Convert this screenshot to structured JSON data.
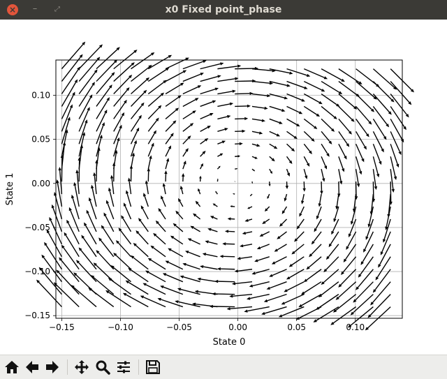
{
  "window": {
    "title": "x0 Fixed point_phase",
    "close_glyph": "×",
    "minimize_glyph": "–",
    "maximize_glyph": "⤢"
  },
  "toolbar": {
    "buttons": [
      {
        "name": "home-icon"
      },
      {
        "name": "back-arrow-icon"
      },
      {
        "name": "forward-arrow-icon"
      },
      {
        "name": "pan-icon"
      },
      {
        "name": "zoom-icon"
      },
      {
        "name": "configure-subplots-icon"
      },
      {
        "name": "save-icon"
      }
    ]
  },
  "chart_data": {
    "type": "quiver",
    "title": "",
    "xlabel": "State 0",
    "ylabel": "State 1",
    "xlim": [
      -0.155,
      0.14
    ],
    "ylim": [
      -0.153,
      0.14
    ],
    "xticks": [
      -0.15,
      -0.1,
      -0.05,
      0.0,
      0.05,
      0.1
    ],
    "yticks": [
      -0.15,
      -0.1,
      -0.05,
      0.0,
      0.05,
      0.1
    ],
    "xtick_labels": [
      "−0.15",
      "−0.10",
      "−0.05",
      "0.00",
      "0.05",
      "0.10"
    ],
    "ytick_labels": [
      "−0.15",
      "−0.10",
      "−0.05",
      "0.00",
      "0.05",
      "0.10"
    ],
    "grid": true,
    "field": {
      "description": "clockwise rotation about the origin",
      "x_range": [
        -0.15,
        0.13
      ],
      "y_range": [
        -0.14,
        0.13
      ],
      "nx": 20,
      "ny": 20,
      "u": "y",
      "v": "-x"
    }
  }
}
